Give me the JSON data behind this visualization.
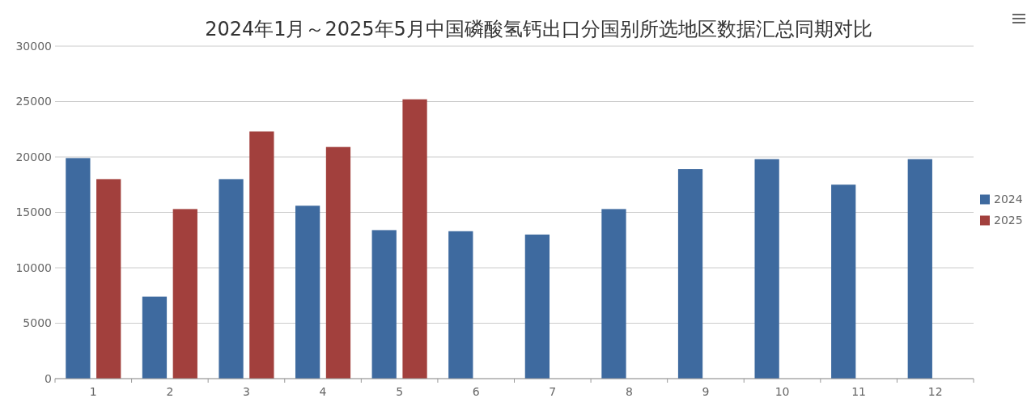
{
  "chart_data": {
    "type": "bar",
    "title": "2024年1月～2025年5月中国磷酸氢钙出口分国别所选地区数据汇总同期对比",
    "categories": [
      "1",
      "2",
      "3",
      "4",
      "5",
      "6",
      "7",
      "8",
      "9",
      "10",
      "11",
      "12"
    ],
    "series": [
      {
        "name": "2024",
        "color": "#3e6a9f",
        "values": [
          19900,
          7400,
          18000,
          15600,
          13400,
          13300,
          13000,
          15300,
          18900,
          19800,
          17500,
          19800
        ]
      },
      {
        "name": "2025",
        "color": "#a2403d",
        "values": [
          18000,
          15300,
          22300,
          20900,
          25200,
          null,
          null,
          null,
          null,
          null,
          null,
          null
        ]
      }
    ],
    "ylim": [
      0,
      30000
    ],
    "yticks": [
      0,
      5000,
      10000,
      15000,
      20000,
      25000,
      30000
    ],
    "grid": "y",
    "legend": "right"
  }
}
